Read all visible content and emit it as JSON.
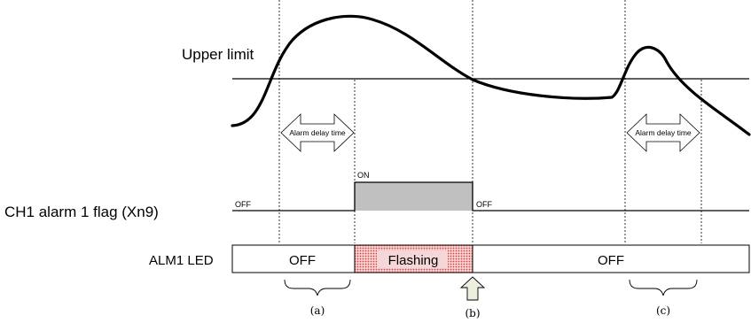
{
  "labels": {
    "upper_limit": "Upper limit",
    "alarm_delay_left": "Alarm delay time",
    "alarm_delay_right": "Alarm delay time",
    "flag_name": "CH1  alarm  1  flag  (Xn9)",
    "flag_off_before": "OFF",
    "flag_on": "ON",
    "flag_off_after": "OFF",
    "led_name": "ALM1 LED",
    "led_off_left": "OFF",
    "led_flashing": "Flashing",
    "led_off_right": "OFF",
    "marker_a": "(a)",
    "marker_b": "(b)",
    "marker_c": "(c)"
  },
  "colors": {
    "flag_on_fill": "#c0c0c0",
    "flashing_dot": "#e03c3c",
    "flashing_bg": "#f6d7d7",
    "reset_arrow_fill": "#ecefe0",
    "line": "#000000"
  },
  "icons": {
    "reset_marker": "up-arrow-icon",
    "delay_arrows": "double-headed-arrow-icon"
  }
}
